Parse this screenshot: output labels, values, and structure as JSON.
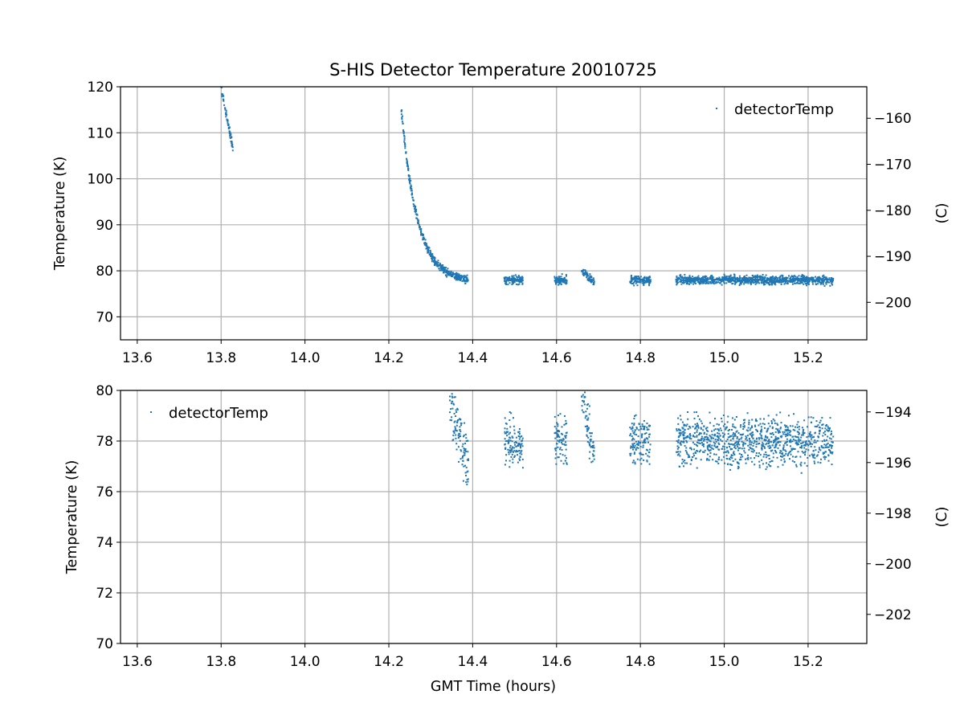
{
  "chart_data": {
    "type": "scatter",
    "title": "S-HIS Detector Temperature 20010725",
    "xlabel": "GMT Time (hours)",
    "x_ticks": [
      "13.6",
      "13.8",
      "14.0",
      "14.2",
      "14.4",
      "14.6",
      "14.8",
      "15.0",
      "15.2"
    ],
    "color": "#1f77b4",
    "panels": [
      {
        "ylabel": "Temperature (K)",
        "ylabel_right": "(C)",
        "xlim": [
          13.56,
          15.34
        ],
        "ylim": [
          65,
          120
        ],
        "y_ticks": [
          "70",
          "80",
          "90",
          "100",
          "110",
          "120"
        ],
        "y_ticks_right": [
          "−160",
          "−170",
          "−180",
          "−190",
          "−200"
        ],
        "grid": true,
        "legend": {
          "label": "detectorTemp",
          "position": "top-right"
        },
        "series": [
          {
            "name": "detectorTemp",
            "segments": [
              {
                "x_start": 13.8,
                "x_end": 13.828,
                "y_start": 120.0,
                "y_end": 106.5,
                "spread": 1.2
              },
              {
                "x_start": 14.23,
                "x_end": 14.39,
                "curve": "exp-decay",
                "y_start": 115.0,
                "y_floor": 77.5,
                "spread": 1.2
              },
              {
                "x_start": 14.475,
                "x_end": 14.52,
                "y_mean": 78.0,
                "spread": 1.4
              },
              {
                "x_start": 14.595,
                "x_end": 14.625,
                "y_mean": 78.0,
                "spread": 1.4
              },
              {
                "x_start": 14.66,
                "x_end": 14.69,
                "y_start": 80.0,
                "y_end": 77.5,
                "spread": 1.2
              },
              {
                "x_start": 14.775,
                "x_end": 14.825,
                "y_mean": 78.0,
                "spread": 1.4
              },
              {
                "x_start": 14.885,
                "x_end": 15.26,
                "y_mean": 78.0,
                "spread": 1.4
              }
            ]
          }
        ]
      },
      {
        "ylabel": "Temperature (K)",
        "ylabel_right": "(C)",
        "xlim": [
          13.56,
          15.34
        ],
        "ylim": [
          70,
          80
        ],
        "y_ticks": [
          "70",
          "72",
          "74",
          "76",
          "78",
          "80"
        ],
        "y_ticks_right": [
          "−194",
          "−196",
          "−198",
          "−200",
          "−202"
        ],
        "grid": true,
        "legend": {
          "label": "detectorTemp",
          "position": "top-left"
        },
        "series": [
          {
            "name": "detectorTemp",
            "segments": [
              {
                "x_start": 14.345,
                "x_end": 14.39,
                "y_start": 79.5,
                "y_end": 77.0,
                "spread": 1.6
              },
              {
                "x_start": 14.475,
                "x_end": 14.52,
                "y_mean": 78.0,
                "spread": 1.4
              },
              {
                "x_start": 14.595,
                "x_end": 14.625,
                "y_mean": 78.0,
                "spread": 1.4
              },
              {
                "x_start": 14.66,
                "x_end": 14.69,
                "y_start": 79.8,
                "y_end": 77.4,
                "spread": 1.2
              },
              {
                "x_start": 14.775,
                "x_end": 14.825,
                "y_mean": 78.0,
                "spread": 1.4
              },
              {
                "x_start": 14.885,
                "x_end": 15.26,
                "y_mean": 78.0,
                "spread": 1.4
              }
            ]
          }
        ]
      }
    ]
  }
}
